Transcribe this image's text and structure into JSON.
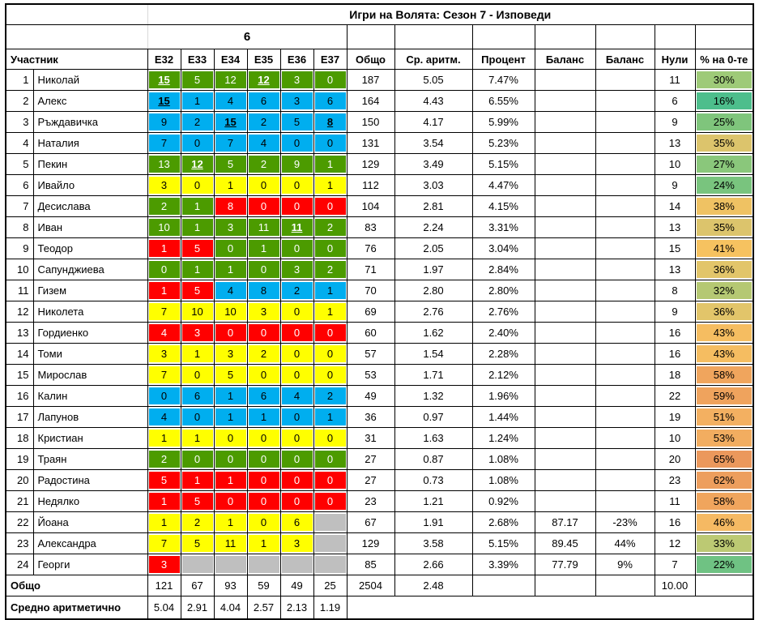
{
  "title": "Игри на Волята: Сезон 7 - Изповеди",
  "group_header": "6",
  "columns": {
    "participant": "Участник",
    "episodes": [
      "E32",
      "E33",
      "E34",
      "E35",
      "E36",
      "E37"
    ],
    "total": "Общо",
    "average": "Ср. аритм.",
    "percent": "Процент",
    "balance1": "Баланс",
    "balance2": "Баланс",
    "zeros": "Нули",
    "zero_pct": "% на 0-те"
  },
  "palette": {
    "green": "#4C9B00",
    "blue": "#00AEEF",
    "yellow": "#FFFF00",
    "red": "#FF0000",
    "gray": "#BFBFBF"
  },
  "rows": [
    {
      "rank": "1",
      "name": "Николай",
      "episodes": [
        {
          "v": "15",
          "bg": "green",
          "max": true
        },
        {
          "v": "5",
          "bg": "green"
        },
        {
          "v": "12",
          "bg": "green"
        },
        {
          "v": "12",
          "bg": "green",
          "max": true
        },
        {
          "v": "3",
          "bg": "green"
        },
        {
          "v": "0",
          "bg": "green"
        }
      ],
      "total": "187",
      "average": "5.05",
      "percent": "7.47%",
      "balance1": "",
      "balance2": "",
      "zeros": "11",
      "zero_pct": "30%",
      "zero_pct_color": "#9ECA78"
    },
    {
      "rank": "2",
      "name": "Алекс",
      "episodes": [
        {
          "v": "15",
          "bg": "blue",
          "max": true
        },
        {
          "v": "1",
          "bg": "blue"
        },
        {
          "v": "4",
          "bg": "blue"
        },
        {
          "v": "6",
          "bg": "blue"
        },
        {
          "v": "3",
          "bg": "blue"
        },
        {
          "v": "6",
          "bg": "blue"
        }
      ],
      "total": "164",
      "average": "4.43",
      "percent": "6.55%",
      "balance1": "",
      "balance2": "",
      "zeros": "6",
      "zero_pct": "16%",
      "zero_pct_color": "#4DBE8C"
    },
    {
      "rank": "3",
      "name": "Ръждавичка",
      "episodes": [
        {
          "v": "9",
          "bg": "blue"
        },
        {
          "v": "2",
          "bg": "blue"
        },
        {
          "v": "15",
          "bg": "blue",
          "max": true
        },
        {
          "v": "2",
          "bg": "blue"
        },
        {
          "v": "5",
          "bg": "blue"
        },
        {
          "v": "8",
          "bg": "blue",
          "max": true
        }
      ],
      "total": "150",
      "average": "4.17",
      "percent": "5.99%",
      "balance1": "",
      "balance2": "",
      "zeros": "9",
      "zero_pct": "25%",
      "zero_pct_color": "#7FC57C"
    },
    {
      "rank": "4",
      "name": "Наталия",
      "episodes": [
        {
          "v": "7",
          "bg": "blue"
        },
        {
          "v": "0",
          "bg": "blue"
        },
        {
          "v": "7",
          "bg": "blue"
        },
        {
          "v": "4",
          "bg": "blue"
        },
        {
          "v": "0",
          "bg": "blue"
        },
        {
          "v": "0",
          "bg": "blue"
        }
      ],
      "total": "131",
      "average": "3.54",
      "percent": "5.23%",
      "balance1": "",
      "balance2": "",
      "zeros": "13",
      "zero_pct": "35%",
      "zero_pct_color": "#DCC46C"
    },
    {
      "rank": "5",
      "name": "Пекин",
      "episodes": [
        {
          "v": "13",
          "bg": "green"
        },
        {
          "v": "12",
          "bg": "green",
          "max": true
        },
        {
          "v": "5",
          "bg": "green"
        },
        {
          "v": "2",
          "bg": "green"
        },
        {
          "v": "9",
          "bg": "green"
        },
        {
          "v": "1",
          "bg": "green"
        }
      ],
      "total": "129",
      "average": "3.49",
      "percent": "5.15%",
      "balance1": "",
      "balance2": "",
      "zeros": "10",
      "zero_pct": "27%",
      "zero_pct_color": "#8AC77B"
    },
    {
      "rank": "6",
      "name": "Ивайло",
      "episodes": [
        {
          "v": "3",
          "bg": "yellow"
        },
        {
          "v": "0",
          "bg": "yellow"
        },
        {
          "v": "1",
          "bg": "yellow"
        },
        {
          "v": "0",
          "bg": "yellow"
        },
        {
          "v": "0",
          "bg": "yellow"
        },
        {
          "v": "1",
          "bg": "yellow"
        }
      ],
      "total": "112",
      "average": "3.03",
      "percent": "4.47%",
      "balance1": "",
      "balance2": "",
      "zeros": "9",
      "zero_pct": "24%",
      "zero_pct_color": "#79C47E"
    },
    {
      "rank": "7",
      "name": "Десислава",
      "episodes": [
        {
          "v": "2",
          "bg": "green"
        },
        {
          "v": "1",
          "bg": "green"
        },
        {
          "v": "8",
          "bg": "red"
        },
        {
          "v": "0",
          "bg": "red"
        },
        {
          "v": "0",
          "bg": "red"
        },
        {
          "v": "0",
          "bg": "red"
        }
      ],
      "total": "104",
      "average": "2.81",
      "percent": "4.15%",
      "balance1": "",
      "balance2": "",
      "zeros": "14",
      "zero_pct": "38%",
      "zero_pct_color": "#EFC263"
    },
    {
      "rank": "8",
      "name": "Иван",
      "episodes": [
        {
          "v": "10",
          "bg": "green"
        },
        {
          "v": "1",
          "bg": "green"
        },
        {
          "v": "3",
          "bg": "green"
        },
        {
          "v": "11",
          "bg": "green"
        },
        {
          "v": "11",
          "bg": "green",
          "max": true
        },
        {
          "v": "2",
          "bg": "green"
        }
      ],
      "total": "83",
      "average": "2.24",
      "percent": "3.31%",
      "balance1": "",
      "balance2": "",
      "zeros": "13",
      "zero_pct": "35%",
      "zero_pct_color": "#DCC46C"
    },
    {
      "rank": "9",
      "name": "Теодор",
      "episodes": [
        {
          "v": "1",
          "bg": "red"
        },
        {
          "v": "5",
          "bg": "red"
        },
        {
          "v": "0",
          "bg": "green"
        },
        {
          "v": "1",
          "bg": "green"
        },
        {
          "v": "0",
          "bg": "green"
        },
        {
          "v": "0",
          "bg": "green"
        }
      ],
      "total": "76",
      "average": "2.05",
      "percent": "3.04%",
      "balance1": "",
      "balance2": "",
      "zeros": "15",
      "zero_pct": "41%",
      "zero_pct_color": "#F6C260"
    },
    {
      "rank": "10",
      "name": "Сапунджиева",
      "episodes": [
        {
          "v": "0",
          "bg": "green"
        },
        {
          "v": "1",
          "bg": "green"
        },
        {
          "v": "1",
          "bg": "green"
        },
        {
          "v": "0",
          "bg": "green"
        },
        {
          "v": "3",
          "bg": "green"
        },
        {
          "v": "2",
          "bg": "green"
        }
      ],
      "total": "71",
      "average": "1.97",
      "percent": "2.84%",
      "balance1": "",
      "balance2": "",
      "zeros": "13",
      "zero_pct": "36%",
      "zero_pct_color": "#E2C56A"
    },
    {
      "rank": "11",
      "name": "Гизем",
      "episodes": [
        {
          "v": "1",
          "bg": "red"
        },
        {
          "v": "5",
          "bg": "red"
        },
        {
          "v": "4",
          "bg": "blue"
        },
        {
          "v": "8",
          "bg": "blue"
        },
        {
          "v": "2",
          "bg": "blue"
        },
        {
          "v": "1",
          "bg": "blue"
        }
      ],
      "total": "70",
      "average": "2.80",
      "percent": "2.80%",
      "balance1": "",
      "balance2": "",
      "zeros": "8",
      "zero_pct": "32%",
      "zero_pct_color": "#B5C873"
    },
    {
      "rank": "12",
      "name": "Николета",
      "episodes": [
        {
          "v": "7",
          "bg": "yellow"
        },
        {
          "v": "10",
          "bg": "yellow"
        },
        {
          "v": "10",
          "bg": "yellow"
        },
        {
          "v": "3",
          "bg": "yellow"
        },
        {
          "v": "0",
          "bg": "yellow"
        },
        {
          "v": "1",
          "bg": "yellow"
        }
      ],
      "total": "69",
      "average": "2.76",
      "percent": "2.76%",
      "balance1": "",
      "balance2": "",
      "zeros": "9",
      "zero_pct": "36%",
      "zero_pct_color": "#E2C56A"
    },
    {
      "rank": "13",
      "name": "Гордиенко",
      "episodes": [
        {
          "v": "4",
          "bg": "red"
        },
        {
          "v": "3",
          "bg": "red"
        },
        {
          "v": "0",
          "bg": "red"
        },
        {
          "v": "0",
          "bg": "red"
        },
        {
          "v": "0",
          "bg": "red"
        },
        {
          "v": "0",
          "bg": "red"
        }
      ],
      "total": "60",
      "average": "1.62",
      "percent": "2.40%",
      "balance1": "",
      "balance2": "",
      "zeros": "16",
      "zero_pct": "43%",
      "zero_pct_color": "#F5BD61"
    },
    {
      "rank": "14",
      "name": "Томи",
      "episodes": [
        {
          "v": "3",
          "bg": "yellow"
        },
        {
          "v": "1",
          "bg": "yellow"
        },
        {
          "v": "3",
          "bg": "yellow"
        },
        {
          "v": "2",
          "bg": "yellow"
        },
        {
          "v": "0",
          "bg": "yellow"
        },
        {
          "v": "0",
          "bg": "yellow"
        }
      ],
      "total": "57",
      "average": "1.54",
      "percent": "2.28%",
      "balance1": "",
      "balance2": "",
      "zeros": "16",
      "zero_pct": "43%",
      "zero_pct_color": "#F5BD61"
    },
    {
      "rank": "15",
      "name": "Мирослав",
      "episodes": [
        {
          "v": "7",
          "bg": "yellow"
        },
        {
          "v": "0",
          "bg": "yellow"
        },
        {
          "v": "5",
          "bg": "yellow"
        },
        {
          "v": "0",
          "bg": "yellow"
        },
        {
          "v": "0",
          "bg": "yellow"
        },
        {
          "v": "0",
          "bg": "yellow"
        }
      ],
      "total": "53",
      "average": "1.71",
      "percent": "2.12%",
      "balance1": "",
      "balance2": "",
      "zeros": "18",
      "zero_pct": "58%",
      "zero_pct_color": "#F0A55D"
    },
    {
      "rank": "16",
      "name": "Калин",
      "episodes": [
        {
          "v": "0",
          "bg": "blue"
        },
        {
          "v": "6",
          "bg": "blue"
        },
        {
          "v": "1",
          "bg": "blue"
        },
        {
          "v": "6",
          "bg": "blue"
        },
        {
          "v": "4",
          "bg": "blue"
        },
        {
          "v": "2",
          "bg": "blue"
        }
      ],
      "total": "49",
      "average": "1.32",
      "percent": "1.96%",
      "balance1": "",
      "balance2": "",
      "zeros": "22",
      "zero_pct": "59%",
      "zero_pct_color": "#EFA35D"
    },
    {
      "rank": "17",
      "name": "Лапунов",
      "episodes": [
        {
          "v": "4",
          "bg": "blue"
        },
        {
          "v": "0",
          "bg": "blue"
        },
        {
          "v": "1",
          "bg": "blue"
        },
        {
          "v": "1",
          "bg": "blue"
        },
        {
          "v": "0",
          "bg": "blue"
        },
        {
          "v": "1",
          "bg": "blue"
        }
      ],
      "total": "36",
      "average": "0.97",
      "percent": "1.44%",
      "balance1": "",
      "balance2": "",
      "zeros": "19",
      "zero_pct": "51%",
      "zero_pct_color": "#F3B061"
    },
    {
      "rank": "18",
      "name": "Кристиан",
      "episodes": [
        {
          "v": "1",
          "bg": "yellow"
        },
        {
          "v": "1",
          "bg": "yellow"
        },
        {
          "v": "0",
          "bg": "yellow"
        },
        {
          "v": "0",
          "bg": "yellow"
        },
        {
          "v": "0",
          "bg": "yellow"
        },
        {
          "v": "0",
          "bg": "yellow"
        }
      ],
      "total": "31",
      "average": "1.63",
      "percent": "1.24%",
      "balance1": "",
      "balance2": "",
      "zeros": "10",
      "zero_pct": "53%",
      "zero_pct_color": "#F2AD60"
    },
    {
      "rank": "19",
      "name": "Траян",
      "episodes": [
        {
          "v": "2",
          "bg": "green"
        },
        {
          "v": "0",
          "bg": "green"
        },
        {
          "v": "0",
          "bg": "green"
        },
        {
          "v": "0",
          "bg": "green"
        },
        {
          "v": "0",
          "bg": "green"
        },
        {
          "v": "0",
          "bg": "green"
        }
      ],
      "total": "27",
      "average": "0.87",
      "percent": "1.08%",
      "balance1": "",
      "balance2": "",
      "zeros": "20",
      "zero_pct": "65%",
      "zero_pct_color": "#EB985C"
    },
    {
      "rank": "20",
      "name": "Радостина",
      "episodes": [
        {
          "v": "5",
          "bg": "red"
        },
        {
          "v": "1",
          "bg": "red"
        },
        {
          "v": "1",
          "bg": "red"
        },
        {
          "v": "0",
          "bg": "red"
        },
        {
          "v": "0",
          "bg": "red"
        },
        {
          "v": "0",
          "bg": "red"
        }
      ],
      "total": "27",
      "average": "0.73",
      "percent": "1.08%",
      "balance1": "",
      "balance2": "",
      "zeros": "23",
      "zero_pct": "62%",
      "zero_pct_color": "#ED9E5D"
    },
    {
      "rank": "21",
      "name": "Недялко",
      "episodes": [
        {
          "v": "1",
          "bg": "red"
        },
        {
          "v": "5",
          "bg": "red"
        },
        {
          "v": "0",
          "bg": "red"
        },
        {
          "v": "0",
          "bg": "red"
        },
        {
          "v": "0",
          "bg": "red"
        },
        {
          "v": "0",
          "bg": "red"
        }
      ],
      "total": "23",
      "average": "1.21",
      "percent": "0.92%",
      "balance1": "",
      "balance2": "",
      "zeros": "11",
      "zero_pct": "58%",
      "zero_pct_color": "#F0A55D"
    },
    {
      "rank": "22",
      "name": "Йоана",
      "episodes": [
        {
          "v": "1",
          "bg": "yellow"
        },
        {
          "v": "2",
          "bg": "yellow"
        },
        {
          "v": "1",
          "bg": "yellow"
        },
        {
          "v": "0",
          "bg": "yellow"
        },
        {
          "v": "6",
          "bg": "yellow"
        },
        {
          "v": "",
          "bg": "gray"
        }
      ],
      "total": "67",
      "average": "1.91",
      "percent": "2.68%",
      "balance1": "87.17",
      "balance2": "-23%",
      "zeros": "16",
      "zero_pct": "46%",
      "zero_pct_color": "#F5B963"
    },
    {
      "rank": "23",
      "name": "Александра",
      "episodes": [
        {
          "v": "7",
          "bg": "yellow"
        },
        {
          "v": "5",
          "bg": "yellow"
        },
        {
          "v": "11",
          "bg": "yellow"
        },
        {
          "v": "1",
          "bg": "yellow"
        },
        {
          "v": "3",
          "bg": "yellow"
        },
        {
          "v": "",
          "bg": "gray"
        }
      ],
      "total": "129",
      "average": "3.58",
      "percent": "5.15%",
      "balance1": "89.45",
      "balance2": "44%",
      "zeros": "12",
      "zero_pct": "33%",
      "zero_pct_color": "#BCC973"
    },
    {
      "rank": "24",
      "name": "Георги",
      "episodes": [
        {
          "v": "3",
          "bg": "red"
        },
        {
          "v": "",
          "bg": "gray"
        },
        {
          "v": "",
          "bg": "gray"
        },
        {
          "v": "",
          "bg": "gray"
        },
        {
          "v": "",
          "bg": "gray"
        },
        {
          "v": "",
          "bg": "gray"
        }
      ],
      "total": "85",
      "average": "2.66",
      "percent": "3.39%",
      "balance1": "77.79",
      "balance2": "9%",
      "zeros": "7",
      "zero_pct": "22%",
      "zero_pct_color": "#6FC283"
    }
  ],
  "footer": {
    "total_label": "Общо",
    "total_row": {
      "episodes": [
        "121",
        "67",
        "93",
        "59",
        "49",
        "25"
      ],
      "total": "2504",
      "average": "2.48",
      "percent": "",
      "balance1": "",
      "balance2": "",
      "zeros": "10.00",
      "zero_pct": ""
    },
    "average_label": "Средно аритметично",
    "average_row": {
      "episodes": [
        "5.04",
        "2.91",
        "4.04",
        "2.57",
        "2.13",
        "1.19"
      ]
    }
  }
}
